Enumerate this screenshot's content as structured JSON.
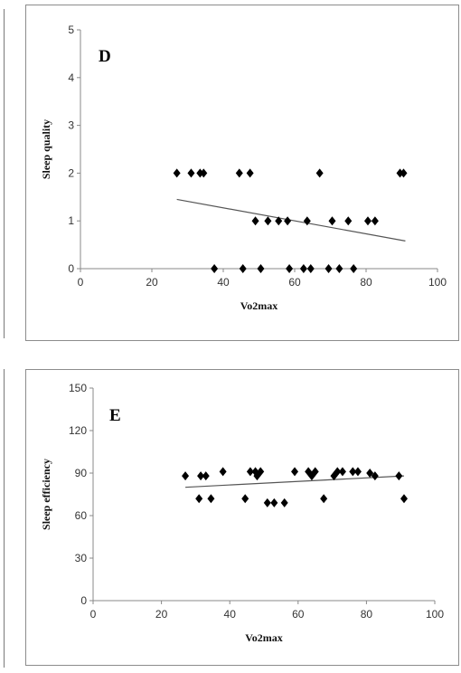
{
  "chart_data": [
    {
      "type": "scatter",
      "panel_label": "D",
      "xlabel": "Vo2max",
      "ylabel": "Sleep quality",
      "xlim": [
        0,
        100
      ],
      "ylim": [
        0,
        5
      ],
      "xticks": [
        0,
        20,
        40,
        60,
        80,
        100
      ],
      "yticks": [
        0,
        1,
        2,
        3,
        4,
        5
      ],
      "grid": false,
      "marker": "diamond",
      "marker_color": "#000000",
      "trendline": {
        "x": [
          27,
          91
        ],
        "y": [
          1.45,
          0.58
        ],
        "color": "#555555"
      },
      "points": [
        {
          "x": 27,
          "y": 2
        },
        {
          "x": 31,
          "y": 2
        },
        {
          "x": 33.5,
          "y": 2
        },
        {
          "x": 34.5,
          "y": 2
        },
        {
          "x": 44.5,
          "y": 2
        },
        {
          "x": 47.5,
          "y": 2
        },
        {
          "x": 67,
          "y": 2
        },
        {
          "x": 89.5,
          "y": 2
        },
        {
          "x": 90.5,
          "y": 2
        },
        {
          "x": 49,
          "y": 1
        },
        {
          "x": 52.5,
          "y": 1
        },
        {
          "x": 55.5,
          "y": 1
        },
        {
          "x": 58,
          "y": 1
        },
        {
          "x": 63.5,
          "y": 1
        },
        {
          "x": 70.5,
          "y": 1
        },
        {
          "x": 75,
          "y": 1
        },
        {
          "x": 80.5,
          "y": 1
        },
        {
          "x": 82.5,
          "y": 1
        },
        {
          "x": 37.5,
          "y": 0
        },
        {
          "x": 45.5,
          "y": 0
        },
        {
          "x": 50.5,
          "y": 0
        },
        {
          "x": 58.5,
          "y": 0
        },
        {
          "x": 62.5,
          "y": 0
        },
        {
          "x": 64.5,
          "y": 0
        },
        {
          "x": 69.5,
          "y": 0
        },
        {
          "x": 72.5,
          "y": 0
        },
        {
          "x": 76.5,
          "y": 0
        }
      ]
    },
    {
      "type": "scatter",
      "panel_label": "E",
      "xlabel": "Vo2max",
      "ylabel": "Sleep efficiency",
      "xlim": [
        0,
        100
      ],
      "ylim": [
        0,
        150
      ],
      "xticks": [
        0,
        20,
        40,
        60,
        80,
        100
      ],
      "yticks": [
        0,
        30,
        60,
        90,
        120,
        150
      ],
      "grid": false,
      "marker": "diamond",
      "marker_color": "#000000",
      "trendline": {
        "x": [
          27,
          91
        ],
        "y": [
          80,
          88
        ],
        "color": "#555555"
      },
      "points": [
        {
          "x": 27,
          "y": 88
        },
        {
          "x": 31,
          "y": 72
        },
        {
          "x": 31.5,
          "y": 88
        },
        {
          "x": 33,
          "y": 88
        },
        {
          "x": 34.5,
          "y": 72
        },
        {
          "x": 38,
          "y": 91
        },
        {
          "x": 44.5,
          "y": 72
        },
        {
          "x": 46,
          "y": 91
        },
        {
          "x": 47.5,
          "y": 91
        },
        {
          "x": 48,
          "y": 88
        },
        {
          "x": 49,
          "y": 91
        },
        {
          "x": 51,
          "y": 69
        },
        {
          "x": 53,
          "y": 69
        },
        {
          "x": 56,
          "y": 69
        },
        {
          "x": 59,
          "y": 91
        },
        {
          "x": 63,
          "y": 91
        },
        {
          "x": 64,
          "y": 88
        },
        {
          "x": 65,
          "y": 91
        },
        {
          "x": 67.5,
          "y": 72
        },
        {
          "x": 70.5,
          "y": 88
        },
        {
          "x": 71.5,
          "y": 91
        },
        {
          "x": 73,
          "y": 91
        },
        {
          "x": 76,
          "y": 91
        },
        {
          "x": 77.5,
          "y": 91
        },
        {
          "x": 81,
          "y": 90
        },
        {
          "x": 82.5,
          "y": 88
        },
        {
          "x": 89.5,
          "y": 88
        },
        {
          "x": 91,
          "y": 72
        }
      ]
    }
  ]
}
